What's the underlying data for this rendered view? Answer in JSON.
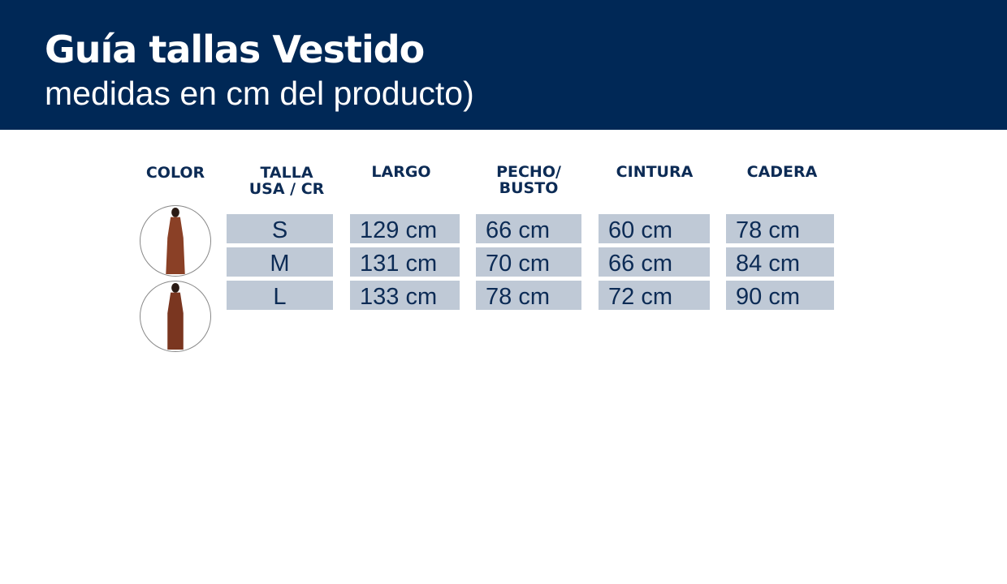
{
  "header": {
    "title": "Guía tallas Vestido",
    "subtitle": "medidas en cm del producto)"
  },
  "columns": [
    "COLOR",
    "TALLA\nUSA / CR",
    "LARGO",
    "PECHO/\nBUSTO",
    "CINTURA",
    "CADERA"
  ],
  "colors": [
    {
      "name": "dress-brown-1",
      "hex": "#8a4026"
    },
    {
      "name": "dress-brown-2",
      "hex": "#7a3620"
    }
  ],
  "rows": [
    {
      "talla": "S",
      "largo": "129 cm",
      "pecho": "66 cm",
      "cintura": "60 cm",
      "cadera": "78 cm"
    },
    {
      "talla": "M",
      "largo": "131 cm",
      "pecho": "70 cm",
      "cintura": "66 cm",
      "cadera": "84 cm"
    },
    {
      "talla": "L",
      "largo": "133 cm",
      "pecho": "78 cm",
      "cintura": "72 cm",
      "cadera": "90 cm"
    }
  ],
  "theme": {
    "header_bg": "#002856",
    "cell_bg": "#bfc9d6",
    "text": "#0c2b55"
  }
}
